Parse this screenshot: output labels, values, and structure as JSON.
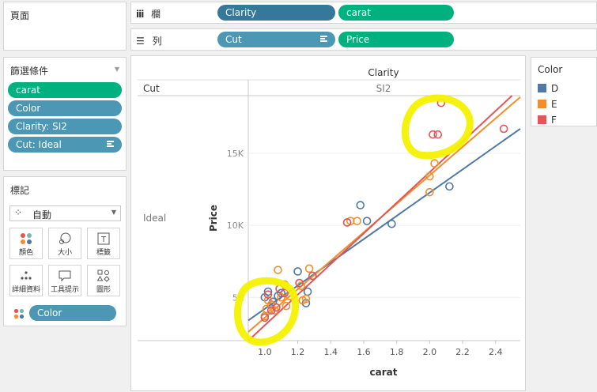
{
  "pages_panel": {
    "title": "頁面"
  },
  "columns_shelf": {
    "label": "欄",
    "pills": [
      "Clarity",
      "carat"
    ]
  },
  "rows_shelf": {
    "label": "列",
    "pills": [
      "Cut",
      "Price"
    ]
  },
  "filters_panel": {
    "title": "篩選條件",
    "items": [
      "carat",
      "Color",
      "Clarity: SI2",
      "Cut: Ideal"
    ]
  },
  "marks_panel": {
    "title": "標記",
    "mark_type": "自動",
    "buttons": [
      "顏色",
      "大小",
      "標籤",
      "詳細資料",
      "工具提示",
      "圖形"
    ],
    "color_pill": "Color"
  },
  "legend": {
    "title": "Color",
    "items": [
      {
        "label": "D",
        "color": "#4e79a7"
      },
      {
        "label": "E",
        "color": "#f28e2b"
      },
      {
        "label": "F",
        "color": "#e15759"
      }
    ]
  },
  "view": {
    "column_header_field": "Clarity",
    "column_header_value": "SI2",
    "row_header_field": "Cut",
    "row_header_value": "Ideal"
  },
  "chart_data": {
    "type": "scatter",
    "xlabel": "carat",
    "ylabel": "Price",
    "xlim": [
      0.9,
      2.55
    ],
    "ylim": [
      2000,
      19000
    ],
    "x_ticks": [
      "1.0",
      "1.2",
      "1.4",
      "1.6",
      "1.8",
      "2.0",
      "2.2",
      "2.4"
    ],
    "y_ticks": [
      "5K",
      "10K",
      "15K"
    ],
    "series": [
      {
        "name": "D",
        "color": "#4e79a7",
        "points": [
          [
            1.0,
            5000
          ],
          [
            1.02,
            5400
          ],
          [
            1.05,
            4700
          ],
          [
            1.08,
            5100
          ],
          [
            1.1,
            5300
          ],
          [
            1.2,
            6800
          ],
          [
            1.25,
            4600
          ],
          [
            1.26,
            5400
          ],
          [
            1.58,
            11400
          ],
          [
            1.62,
            10300
          ],
          [
            1.77,
            10100
          ],
          [
            2.12,
            12700
          ]
        ],
        "trend": [
          [
            0.9,
            3400
          ],
          [
            2.55,
            16700
          ]
        ]
      },
      {
        "name": "E",
        "color": "#f28e2b",
        "points": [
          [
            1.0,
            3700
          ],
          [
            1.01,
            4200
          ],
          [
            1.02,
            4800
          ],
          [
            1.04,
            4500
          ],
          [
            1.06,
            4100
          ],
          [
            1.08,
            6900
          ],
          [
            1.1,
            5000
          ],
          [
            1.12,
            5900
          ],
          [
            1.13,
            4400
          ],
          [
            1.15,
            5100
          ],
          [
            1.22,
            5800
          ],
          [
            1.23,
            4800
          ],
          [
            1.25,
            4900
          ],
          [
            1.27,
            7000
          ],
          [
            1.5,
            10200
          ],
          [
            1.52,
            10300
          ],
          [
            1.56,
            10300
          ],
          [
            2.0,
            12300
          ],
          [
            2.0,
            13400
          ],
          [
            2.03,
            14300
          ]
        ],
        "trend": [
          [
            0.9,
            2600
          ],
          [
            2.55,
            18900
          ]
        ]
      },
      {
        "name": "F",
        "color": "#e15759",
        "points": [
          [
            1.0,
            3600
          ],
          [
            1.02,
            5200
          ],
          [
            1.04,
            4100
          ],
          [
            1.07,
            4300
          ],
          [
            1.09,
            5600
          ],
          [
            1.12,
            5300
          ],
          [
            1.21,
            6000
          ],
          [
            1.29,
            6500
          ],
          [
            1.5,
            10200
          ],
          [
            2.02,
            16300
          ],
          [
            2.05,
            16300
          ],
          [
            2.07,
            18500
          ],
          [
            2.45,
            16700
          ]
        ],
        "trend": [
          [
            0.9,
            2000
          ],
          [
            2.5,
            19000
          ]
        ]
      }
    ]
  }
}
